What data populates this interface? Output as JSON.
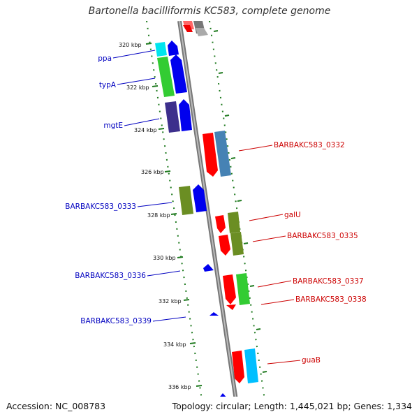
{
  "title": "Bartonella bacilliformis KC583, complete genome",
  "footer": {
    "accession": "Accession: NC_008783",
    "topology": "Topology: circular; Length: 1,445,021 bp; Genes: 1,334"
  },
  "colors": {
    "forward_label": "#0000c0",
    "reverse_label": "#cc0000",
    "backbone": "#888888",
    "tick": "#1f7a1f"
  },
  "kbp_ticks": [
    "320 kbp",
    "322 kbp",
    "324 kbp",
    "326 kbp",
    "328 kbp",
    "330 kbp",
    "332 kbp",
    "334 kbp",
    "336 kbp"
  ],
  "genes_forward": [
    {
      "name": "ppa",
      "color": "#00e5ee",
      "strand": "+"
    },
    {
      "name": "typA",
      "color": "#33cc33",
      "strand": "+"
    },
    {
      "name": "mgtE",
      "color": "#3d2f8c",
      "strand": "+"
    },
    {
      "name": "BARBAKC583_0333",
      "color": "#6b8e23",
      "strand": "+"
    },
    {
      "name": "BARBAKC583_0336",
      "color": "#0000ff",
      "strand": "+"
    },
    {
      "name": "BARBAKC583_0339",
      "color": "#0000ff",
      "strand": "+"
    }
  ],
  "genes_reverse": [
    {
      "name": "BARBAKC583_0332",
      "color": "#4682b4",
      "strand": "-"
    },
    {
      "name": "galU",
      "color": "#6b8e23",
      "strand": "-"
    },
    {
      "name": "BARBAKC583_0335",
      "color": "#6b8e23",
      "strand": "-"
    },
    {
      "name": "BARBAKC583_0337",
      "color": "#33cc33",
      "strand": "-"
    },
    {
      "name": "BARBAKC583_0338",
      "color": "#ff0000",
      "strand": "-"
    },
    {
      "name": "guaB",
      "color": "#00bfff",
      "strand": "-"
    }
  ]
}
